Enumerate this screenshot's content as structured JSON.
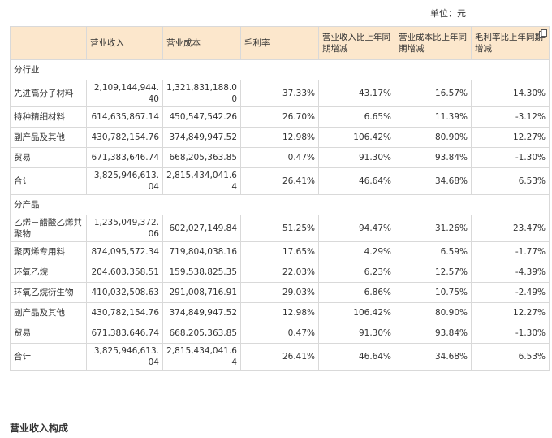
{
  "unit_label": "单位：元",
  "headers": [
    "",
    "营业收入",
    "营业成本",
    "毛利率",
    "营业收入比上年同期增减",
    "营业成本比上年同期增减",
    "毛利率比上年同期增减"
  ],
  "section_industry": "分行业",
  "industry_rows": [
    {
      "name": "先进高分子材料",
      "revenue": "2,109,144,944.40",
      "cost": "1,321,831,188.00",
      "margin": "37.33%",
      "rev_change": "43.17%",
      "cost_change": "16.57%",
      "margin_change": "14.30%"
    },
    {
      "name": "特种精细材料",
      "revenue": "614,635,867.14",
      "cost": "450,547,542.26",
      "margin": "26.70%",
      "rev_change": "6.65%",
      "cost_change": "11.39%",
      "margin_change": "-3.12%"
    },
    {
      "name": "副产品及其他",
      "revenue": "430,782,154.76",
      "cost": "374,849,947.52",
      "margin": "12.98%",
      "rev_change": "106.42%",
      "cost_change": "80.90%",
      "margin_change": "12.27%"
    },
    {
      "name": "贸易",
      "revenue": "671,383,646.74",
      "cost": "668,205,363.85",
      "margin": "0.47%",
      "rev_change": "91.30%",
      "cost_change": "93.84%",
      "margin_change": "-1.30%"
    },
    {
      "name": "合计",
      "revenue": "3,825,946,613.04",
      "cost": "2,815,434,041.64",
      "margin": "26.41%",
      "rev_change": "46.64%",
      "cost_change": "34.68%",
      "margin_change": "6.53%"
    }
  ],
  "section_product": "分产品",
  "product_rows": [
    {
      "name": "乙烯－醋酸乙烯共聚物",
      "revenue": "1,235,049,372.06",
      "cost": "602,027,149.84",
      "margin": "51.25%",
      "rev_change": "94.47%",
      "cost_change": "31.26%",
      "margin_change": "23.47%"
    },
    {
      "name": "聚丙烯专用料",
      "revenue": "874,095,572.34",
      "cost": "719,804,038.16",
      "margin": "17.65%",
      "rev_change": "4.29%",
      "cost_change": "6.59%",
      "margin_change": "-1.77%"
    },
    {
      "name": "环氧乙烷",
      "revenue": "204,603,358.51",
      "cost": "159,538,825.35",
      "margin": "22.03%",
      "rev_change": "6.23%",
      "cost_change": "12.57%",
      "margin_change": "-4.39%"
    },
    {
      "name": "环氧乙烷衍生物",
      "revenue": "410,032,508.63",
      "cost": "291,008,716.91",
      "margin": "29.03%",
      "rev_change": "6.86%",
      "cost_change": "10.75%",
      "margin_change": "-2.49%"
    },
    {
      "name": "副产品及其他",
      "revenue": "430,782,154.76",
      "cost": "374,849,947.52",
      "margin": "12.98%",
      "rev_change": "106.42%",
      "cost_change": "80.90%",
      "margin_change": "12.27%"
    },
    {
      "name": "贸易",
      "revenue": "671,383,646.74",
      "cost": "668,205,363.85",
      "margin": "0.47%",
      "rev_change": "91.30%",
      "cost_change": "93.84%",
      "margin_change": "-1.30%"
    },
    {
      "name": "合计",
      "revenue": "3,825,946,613.04",
      "cost": "2,815,434,041.64",
      "margin": "26.41%",
      "rev_change": "46.64%",
      "cost_change": "34.68%",
      "margin_change": "6.53%"
    }
  ],
  "footer_title": "营业收入构成",
  "icons": {
    "copy": "copy-icon"
  },
  "colors": {
    "header_bg": "#fce7cc",
    "border": "#d9d9d9"
  }
}
